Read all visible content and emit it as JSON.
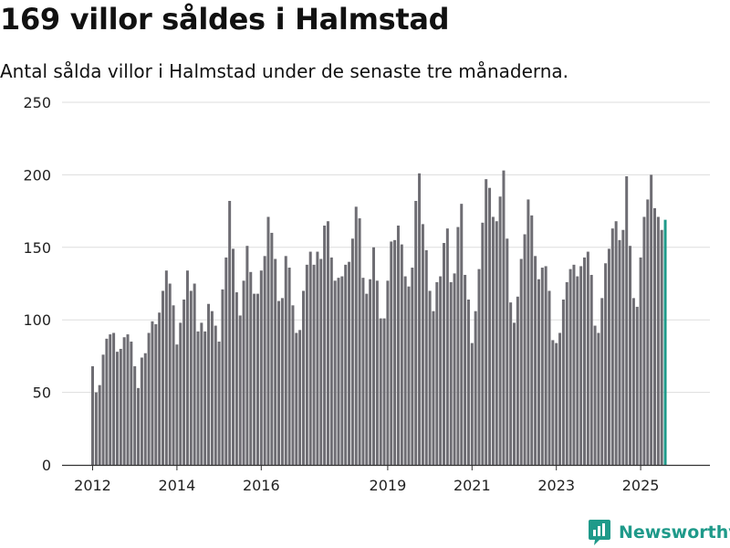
{
  "header": {
    "title": "169 villor såldes i Halmstad",
    "subtitle": "Antal sålda villor i Halmstad under de senaste tre månaderna."
  },
  "brand": {
    "name": "Newsworthy",
    "icon": "newsworthy-logo-icon"
  },
  "colors": {
    "bar": "#6e6d73",
    "highlight": "#1f9a8a",
    "grid": "#dddddd",
    "axis": "#333333",
    "brand": "#1f9a8a"
  },
  "chart_data": {
    "type": "bar",
    "title": "169 villor såldes i Halmstad",
    "subtitle": "Antal sålda villor i Halmstad under de senaste tre månaderna.",
    "xlabel": "",
    "ylabel": "",
    "ylim": [
      0,
      250
    ],
    "yticks": [
      0,
      50,
      100,
      150,
      200,
      250
    ],
    "grid": true,
    "xticks": [
      {
        "label": "2012",
        "index": 0
      },
      {
        "label": "2014",
        "index": 24
      },
      {
        "label": "2016",
        "index": 48
      },
      {
        "label": "2019",
        "index": 84
      },
      {
        "label": "2021",
        "index": 108
      },
      {
        "label": "2023",
        "index": 132
      },
      {
        "label": "2025",
        "index": 156
      }
    ],
    "start": "2012-01",
    "frequency": "monthly",
    "values": [
      68,
      50,
      55,
      76,
      87,
      90,
      91,
      78,
      80,
      88,
      90,
      85,
      68,
      53,
      74,
      77,
      91,
      99,
      97,
      105,
      120,
      134,
      125,
      110,
      83,
      98,
      114,
      134,
      120,
      125,
      92,
      98,
      92,
      111,
      106,
      96,
      85,
      121,
      143,
      182,
      149,
      119,
      103,
      127,
      151,
      133,
      118,
      118,
      134,
      144,
      171,
      160,
      142,
      113,
      115,
      144,
      136,
      110,
      91,
      93,
      120,
      138,
      147,
      138,
      147,
      142,
      165,
      168,
      143,
      127,
      129,
      130,
      138,
      140,
      156,
      178,
      170,
      129,
      118,
      128,
      150,
      127,
      101,
      101,
      127,
      154,
      155,
      165,
      152,
      130,
      123,
      136,
      182,
      201,
      166,
      148,
      120,
      106,
      126,
      130,
      153,
      163,
      126,
      132,
      164,
      180,
      131,
      114,
      84,
      106,
      135,
      167,
      197,
      191,
      171,
      168,
      185,
      203,
      156,
      112,
      98,
      116,
      142,
      159,
      183,
      172,
      144,
      128,
      136,
      137,
      120,
      86,
      84,
      91,
      114,
      126,
      135,
      138,
      130,
      137,
      143,
      147,
      131,
      96,
      91,
      115,
      139,
      149,
      163,
      168,
      155,
      162,
      199,
      151,
      115,
      109,
      143,
      171,
      183,
      200,
      177,
      171,
      162,
      169
    ],
    "highlight_last": true,
    "annotation": {
      "text": "169",
      "index": 167
    }
  }
}
